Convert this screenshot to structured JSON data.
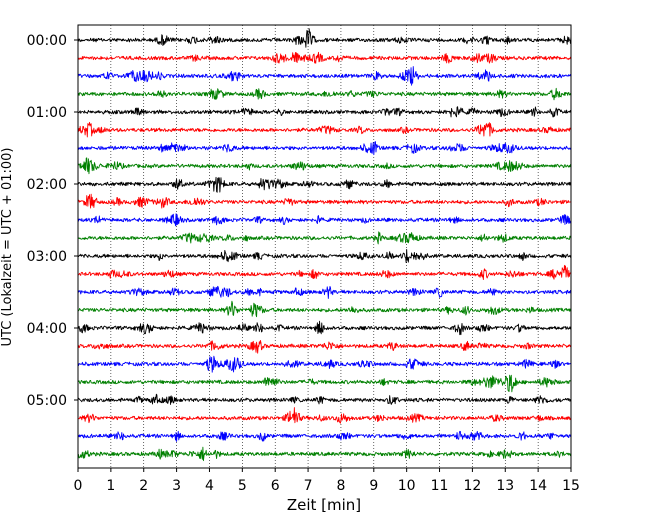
{
  "chart_data": {
    "type": "line",
    "subtype": "helicorder-seismogram",
    "title": "",
    "xlabel": "Zeit  [min]",
    "ylabel": "UTC (Lokalzeit = UTC + 01:00)",
    "xlim": [
      0,
      15
    ],
    "x_ticks": [
      0,
      1,
      2,
      3,
      4,
      5,
      6,
      7,
      8,
      9,
      10,
      11,
      12,
      13,
      14,
      15
    ],
    "x_tick_labels": [
      "0",
      "1",
      "2",
      "3",
      "4",
      "5",
      "6",
      "7",
      "8",
      "9",
      "10",
      "11",
      "12",
      "13",
      "14",
      "15"
    ],
    "y_tick_labels": [
      "00:00",
      "01:00",
      "02:00",
      "03:00",
      "04:00",
      "05:00"
    ],
    "trace_minutes_per_line": 15,
    "trace_count": 24,
    "trace_colors": [
      "#000000",
      "#ff0000",
      "#0000ff",
      "#008000"
    ],
    "vertical_grid": "dotted",
    "events": [
      {
        "trace": 0,
        "minute": 7.0,
        "amp": 1.0
      },
      {
        "trace": 0,
        "minute": 6.7,
        "amp": 0.6
      },
      {
        "trace": 1,
        "minute": 6.6,
        "amp": 0.45
      },
      {
        "trace": 2,
        "minute": 10.2,
        "amp": 1.2
      },
      {
        "trace": 3,
        "minute": 14.5,
        "amp": 0.6
      },
      {
        "trace": 4,
        "minute": 14.5,
        "amp": 0.6
      },
      {
        "trace": 4,
        "minute": 9.4,
        "amp": 0.45
      },
      {
        "trace": 5,
        "minute": 8.6,
        "amp": 0.4
      },
      {
        "trace": 6,
        "minute": 9.0,
        "amp": 0.75
      },
      {
        "trace": 7,
        "minute": 0.3,
        "amp": 0.75
      },
      {
        "trace": 8,
        "minute": 4.2,
        "amp": 0.55
      },
      {
        "trace": 8,
        "minute": 9.4,
        "amp": 0.45
      },
      {
        "trace": 9,
        "minute": 1.2,
        "amp": 0.4
      },
      {
        "trace": 10,
        "minute": 3.0,
        "amp": 0.45
      },
      {
        "trace": 12,
        "minute": 10.0,
        "amp": 0.75
      },
      {
        "trace": 13,
        "minute": 7.2,
        "amp": 0.55
      },
      {
        "trace": 13,
        "minute": 14.8,
        "amp": 0.7
      },
      {
        "trace": 14,
        "minute": 7.6,
        "amp": 0.8
      },
      {
        "trace": 14,
        "minute": 11.0,
        "amp": 0.55
      },
      {
        "trace": 15,
        "minute": 11.8,
        "amp": 0.5
      },
      {
        "trace": 16,
        "minute": 5.5,
        "amp": 0.65
      },
      {
        "trace": 16,
        "minute": 11.6,
        "amp": 0.85
      },
      {
        "trace": 17,
        "minute": 11.8,
        "amp": 0.55
      },
      {
        "trace": 18,
        "minute": 14.5,
        "amp": 0.5
      },
      {
        "trace": 19,
        "minute": 13.2,
        "amp": 1.15
      },
      {
        "trace": 20,
        "minute": 14.0,
        "amp": 0.5
      },
      {
        "trace": 21,
        "minute": 9.2,
        "amp": 0.45
      },
      {
        "trace": 22,
        "minute": 11.6,
        "amp": 0.45
      },
      {
        "trace": 23,
        "minute": 3.8,
        "amp": 0.85
      }
    ]
  }
}
